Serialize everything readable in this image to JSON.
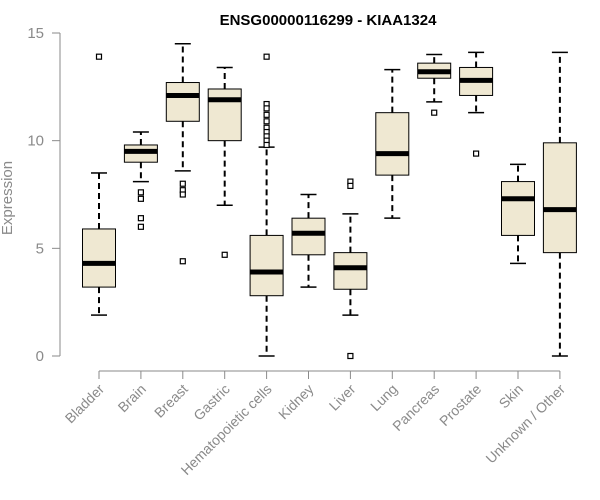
{
  "chart_data": {
    "type": "box",
    "title": "ENSG00000116299 - KIAA1324",
    "xlabel": "",
    "ylabel": "Expression",
    "ylim": [
      0,
      15
    ],
    "yticks": [
      "0",
      "5",
      "10",
      "15"
    ],
    "grid": false,
    "colors": {
      "box_fill": "#efe8d2",
      "box_stroke": "#000000",
      "axis": "#8a8a8a",
      "label": "#8a8a8a"
    },
    "categories": [
      "Bladder",
      "Brain",
      "Breast",
      "Gastric",
      "Hematopoietic cells",
      "Kidney",
      "Liver",
      "Lung",
      "Pancreas",
      "Prostate",
      "Skin",
      "Unknown / Other"
    ],
    "boxes": [
      {
        "name": "Bladder",
        "min": 1.9,
        "q1": 3.2,
        "median": 4.3,
        "q3": 5.9,
        "max": 8.5,
        "outliers": [
          13.9
        ]
      },
      {
        "name": "Brain",
        "min": 8.1,
        "q1": 9.0,
        "median": 9.5,
        "q3": 9.8,
        "max": 10.4,
        "outliers": [
          7.6,
          7.3,
          6.4,
          6.0
        ]
      },
      {
        "name": "Breast",
        "min": 8.6,
        "q1": 10.9,
        "median": 12.1,
        "q3": 12.7,
        "max": 14.5,
        "outliers": [
          8.0,
          7.7,
          7.5,
          4.4
        ]
      },
      {
        "name": "Gastric",
        "min": 7.0,
        "q1": 10.0,
        "median": 11.9,
        "q3": 12.4,
        "max": 13.4,
        "outliers": [
          4.7
        ]
      },
      {
        "name": "Hematopoietic cells",
        "min": 0.0,
        "q1": 2.8,
        "median": 3.9,
        "q3": 5.6,
        "max": 9.7,
        "outliers": [
          13.9,
          11.7,
          11.5,
          11.2,
          10.9,
          10.6,
          10.4,
          10.2,
          10.0,
          9.8
        ]
      },
      {
        "name": "Kidney",
        "min": 3.2,
        "q1": 4.7,
        "median": 5.7,
        "q3": 6.4,
        "max": 7.5,
        "outliers": []
      },
      {
        "name": "Liver",
        "min": 1.9,
        "q1": 3.1,
        "median": 4.1,
        "q3": 4.8,
        "max": 6.6,
        "outliers": [
          8.1,
          7.9,
          0.0
        ]
      },
      {
        "name": "Lung",
        "min": 6.4,
        "q1": 8.4,
        "median": 9.4,
        "q3": 11.3,
        "max": 13.3,
        "outliers": []
      },
      {
        "name": "Pancreas",
        "min": 11.8,
        "q1": 12.9,
        "median": 13.2,
        "q3": 13.6,
        "max": 14.0,
        "outliers": [
          11.3
        ]
      },
      {
        "name": "Prostate",
        "min": 11.3,
        "q1": 12.1,
        "median": 12.8,
        "q3": 13.4,
        "max": 14.1,
        "outliers": [
          9.4
        ]
      },
      {
        "name": "Skin",
        "min": 4.3,
        "q1": 5.6,
        "median": 7.3,
        "q3": 8.1,
        "max": 8.9,
        "outliers": []
      },
      {
        "name": "Unknown / Other",
        "min": 0.0,
        "q1": 4.8,
        "median": 6.8,
        "q3": 9.9,
        "max": 14.1,
        "outliers": []
      }
    ]
  }
}
